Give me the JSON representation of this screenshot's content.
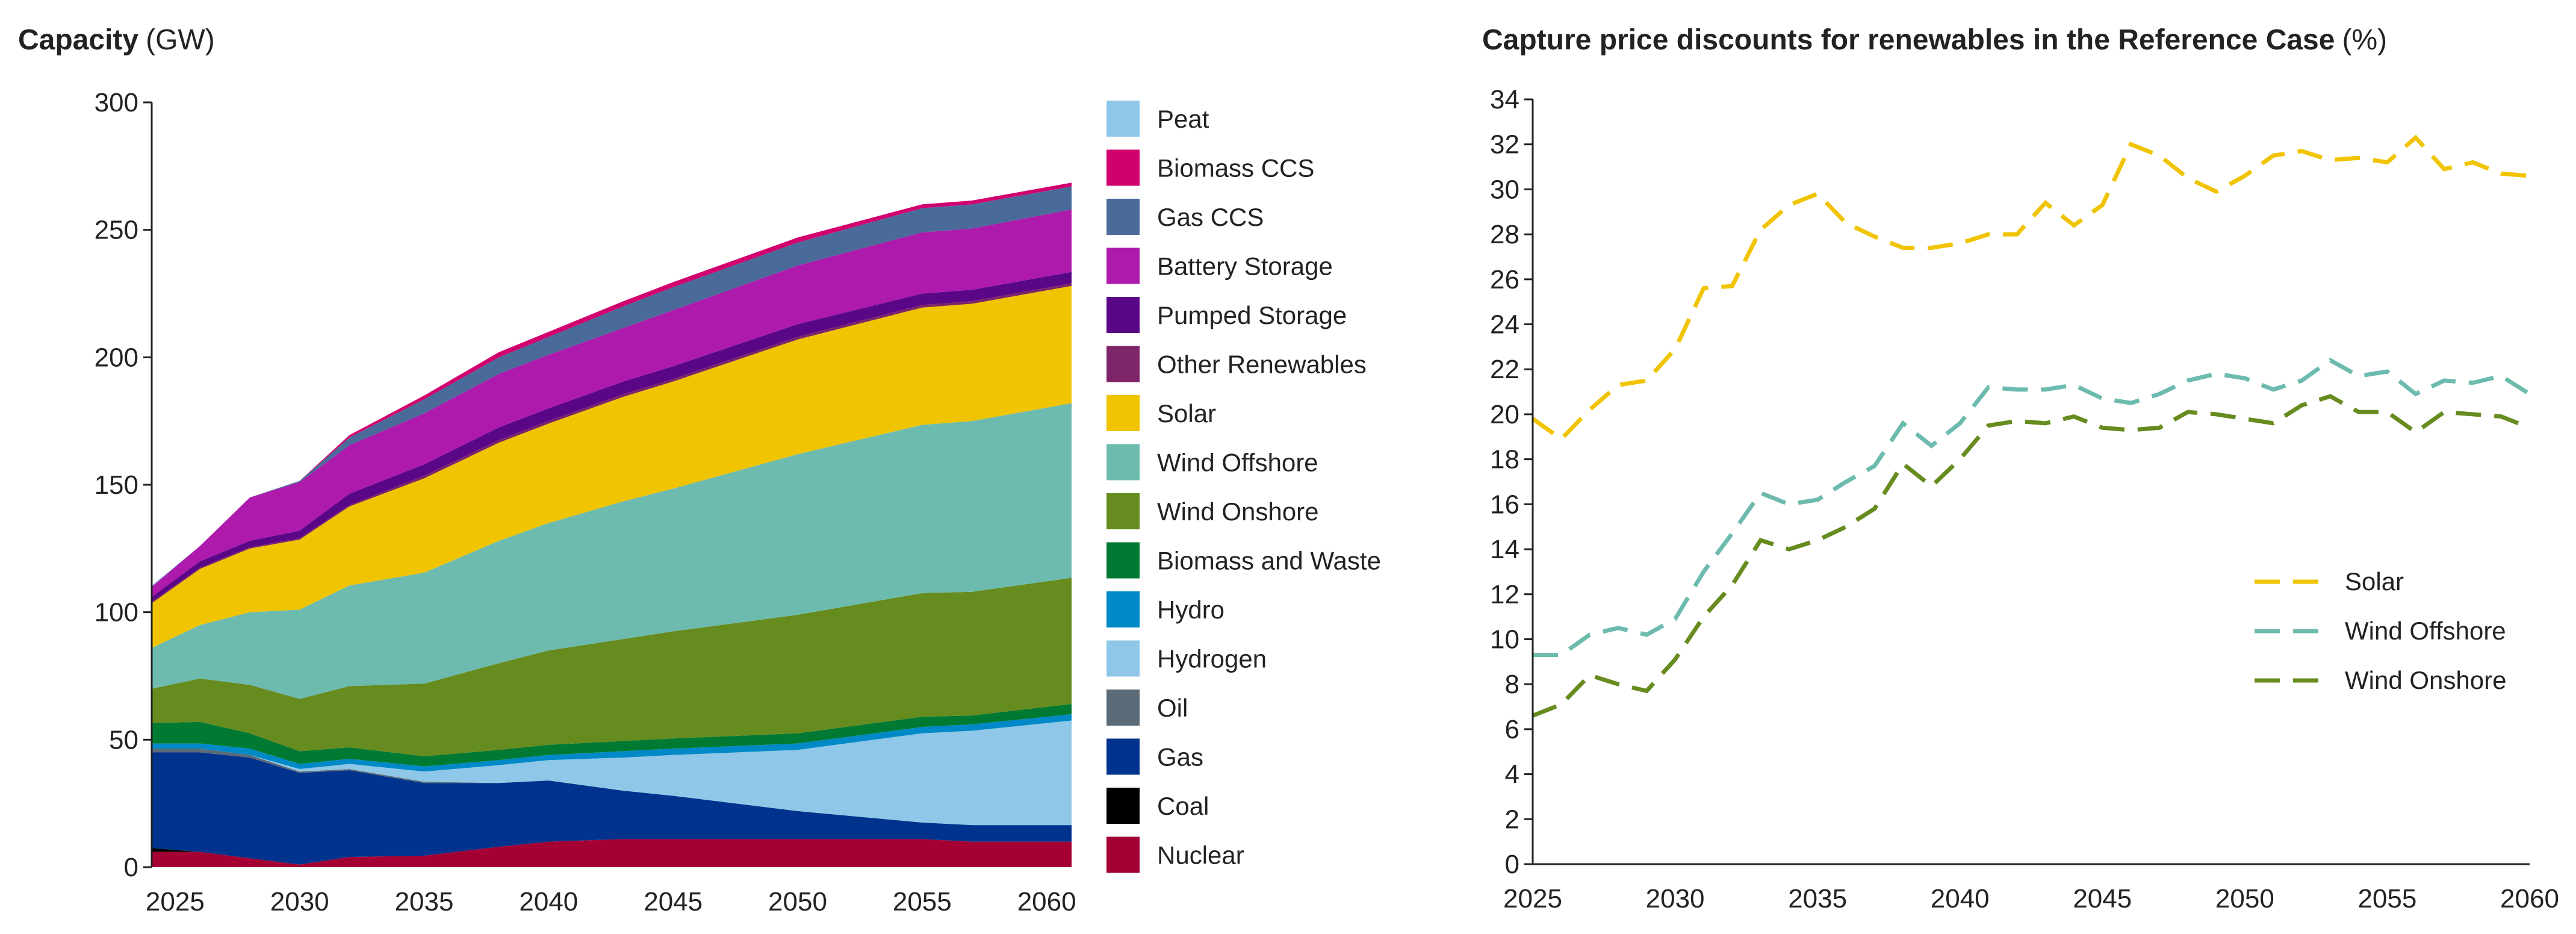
{
  "chart_data": [
    {
      "type": "area",
      "stacked": true,
      "title": "Capacity",
      "title_unit": "(GW)",
      "xlabel": "",
      "ylabel": "",
      "xlim": [
        2024.06,
        2061
      ],
      "ylim": [
        0,
        300
      ],
      "yticks": [
        0,
        50,
        100,
        150,
        200,
        250,
        300
      ],
      "xticks": [
        2025,
        2030,
        2035,
        2040,
        2045,
        2050,
        2055,
        2060
      ],
      "legend_position": "right",
      "x": [
        2024.06,
        2026,
        2028,
        2030,
        2032,
        2035,
        2038,
        2040,
        2043,
        2045,
        2050,
        2055,
        2057,
        2061
      ],
      "series": [
        {
          "name": "Nuclear",
          "color": "#A50034",
          "values": [
            6,
            6,
            3.5,
            1,
            4,
            4.5,
            8,
            10,
            11,
            11,
            11,
            11,
            10,
            10
          ]
        },
        {
          "name": "Coal",
          "color": "#000000",
          "values": [
            1.5,
            0,
            0,
            0,
            0,
            0,
            0,
            0,
            0,
            0,
            0,
            0,
            0,
            0
          ]
        },
        {
          "name": "Gas",
          "color": "#00338D",
          "values": [
            37.5,
            39,
            39.5,
            36,
            34,
            28.5,
            25,
            24,
            19,
            17,
            11,
            6.5,
            6.5,
            6.5
          ]
        },
        {
          "name": "Oil",
          "color": "#5B6B78",
          "values": [
            1.5,
            1.5,
            1,
            0.5,
            0.5,
            0.5,
            0,
            0,
            0,
            0,
            0,
            0,
            0,
            0
          ]
        },
        {
          "name": "Hydrogen",
          "color": "#8FC7E8",
          "values": [
            0,
            0,
            0,
            1,
            2,
            4,
            7,
            8,
            13,
            16,
            24,
            35,
            37,
            41
          ]
        },
        {
          "name": "Hydro",
          "color": "#0089C7",
          "values": [
            2,
            2,
            2.5,
            2,
            2,
            2,
            2,
            2,
            2.5,
            2.5,
            2.5,
            2.5,
            2.5,
            2.5
          ]
        },
        {
          "name": "Biomass and Waste",
          "color": "#007A33",
          "values": [
            8,
            8.5,
            6,
            5,
            4.5,
            4,
            4,
            4,
            4,
            4,
            4,
            4,
            3.5,
            4
          ]
        },
        {
          "name": "Wind Onshore",
          "color": "#668B1E",
          "values": [
            13.5,
            17,
            19,
            20.5,
            24,
            28.5,
            34,
            37,
            40,
            42,
            46.5,
            48.5,
            48.5,
            49.5
          ]
        },
        {
          "name": "Wind Offshore",
          "color": "#6CBBAE",
          "values": [
            16,
            21,
            28.5,
            35,
            39.5,
            43.5,
            48,
            50,
            54,
            56,
            63,
            66,
            67,
            68.5
          ]
        },
        {
          "name": "Solar",
          "color": "#F0C400",
          "values": [
            17.5,
            22,
            25,
            27.5,
            31,
            37,
            38.5,
            39,
            41,
            42,
            45,
            46,
            46,
            46
          ]
        },
        {
          "name": "Other Renewables",
          "color": "#7E2468",
          "values": [
            0.5,
            0.5,
            0.5,
            0.5,
            0.5,
            1,
            1,
            1,
            1,
            1,
            1,
            1,
            1,
            1
          ]
        },
        {
          "name": "Pumped Storage",
          "color": "#5A0787",
          "values": [
            2,
            2.5,
            2.5,
            3,
            4.5,
            4.5,
            5,
            5,
            5,
            5,
            5,
            4.5,
            4.5,
            4.5
          ]
        },
        {
          "name": "Battery Storage",
          "color": "#AD1AAC",
          "values": [
            4,
            6,
            17,
            19,
            19,
            20,
            21,
            21,
            21,
            22,
            23,
            24,
            24,
            24.5
          ]
        },
        {
          "name": "Gas CCS",
          "color": "#4A6A9A",
          "values": [
            0,
            0,
            0,
            0.5,
            3,
            5.5,
            6.5,
            7,
            8.5,
            9,
            9,
            9.5,
            9.5,
            9
          ]
        },
        {
          "name": "Biomass CCS",
          "color": "#D1006F",
          "values": [
            0,
            0,
            0,
            0,
            1,
            1.5,
            2,
            2,
            2,
            2,
            2,
            1.5,
            1.5,
            1.5
          ]
        },
        {
          "name": "Peat",
          "color": "#8FC7E8",
          "values": [
            0.5,
            0,
            0,
            0,
            0,
            0,
            0,
            0,
            0,
            0,
            0,
            0,
            0,
            0
          ]
        }
      ]
    },
    {
      "type": "line",
      "title": "Capture price discounts for renewables in the Reference Case",
      "title_unit": "(%)",
      "xlabel": "",
      "ylabel": "",
      "xlim": [
        2025,
        2060
      ],
      "ylim": [
        0,
        34
      ],
      "yticks": [
        0,
        2,
        4,
        6,
        8,
        10,
        12,
        14,
        16,
        18,
        20,
        22,
        24,
        26,
        28,
        30,
        32,
        34
      ],
      "xticks": [
        2025,
        2030,
        2035,
        2040,
        2045,
        2050,
        2055,
        2060
      ],
      "legend_position": "center-right",
      "x": [
        2025,
        2026,
        2027,
        2028,
        2029,
        2030,
        2031,
        2032,
        2033,
        2034,
        2035,
        2036,
        2037,
        2038,
        2039,
        2040,
        2041,
        2042,
        2043,
        2044,
        2045,
        2046,
        2047,
        2048,
        2049,
        2050,
        2051,
        2052,
        2053,
        2054,
        2055,
        2056,
        2057,
        2058,
        2059,
        2060
      ],
      "series": [
        {
          "name": "Solar",
          "color": "#F0C400",
          "dashed": true,
          "values": [
            19.8,
            18.9,
            20.2,
            21.3,
            21.5,
            22.9,
            25.6,
            25.7,
            28.2,
            29.3,
            29.8,
            28.5,
            27.9,
            27.4,
            27.4,
            27.6,
            28.0,
            28.0,
            29.4,
            28.4,
            29.3,
            32.0,
            31.5,
            30.5,
            29.9,
            30.6,
            31.5,
            31.7,
            31.3,
            31.4,
            31.2,
            32.3,
            30.9,
            31.2,
            30.7,
            30.6
          ]
        },
        {
          "name": "Wind Offshore",
          "color": "#6CBBAE",
          "dashed": true,
          "values": [
            9.3,
            9.3,
            10.2,
            10.5,
            10.2,
            10.9,
            13.0,
            14.7,
            16.5,
            16.0,
            16.2,
            17.0,
            17.7,
            19.6,
            18.6,
            19.6,
            21.2,
            21.1,
            21.1,
            21.3,
            20.7,
            20.5,
            20.9,
            21.5,
            21.8,
            21.6,
            21.1,
            21.5,
            22.4,
            21.7,
            21.9,
            20.9,
            21.5,
            21.4,
            21.7,
            20.9
          ]
        },
        {
          "name": "Wind Onshore",
          "color": "#668B1E",
          "dashed": true,
          "values": [
            6.6,
            7.1,
            8.4,
            8.0,
            7.7,
            9.1,
            11.0,
            12.4,
            14.4,
            14.0,
            14.4,
            15.0,
            15.8,
            17.8,
            16.8,
            18.0,
            19.5,
            19.7,
            19.6,
            19.9,
            19.4,
            19.3,
            19.4,
            20.1,
            20.0,
            19.8,
            19.6,
            20.4,
            20.8,
            20.1,
            20.1,
            19.2,
            20.1,
            20.0,
            19.9,
            19.4
          ]
        }
      ]
    }
  ]
}
